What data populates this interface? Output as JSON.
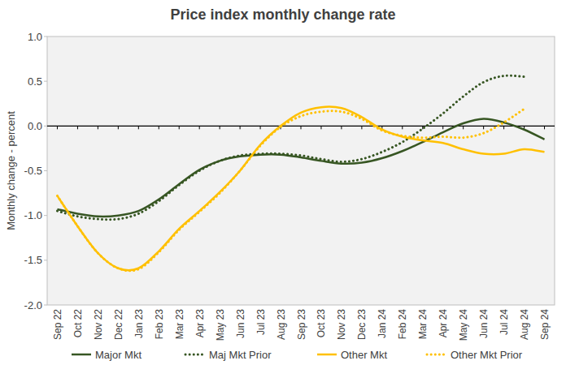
{
  "chart_data": {
    "type": "line",
    "title": "Price index monthly change rate",
    "y_label": "Monthly change - percent",
    "categories": [
      "Sep 22",
      "Oct 22",
      "Nov 22",
      "Dec 22",
      "Jan 23",
      "Feb 23",
      "Mar 23",
      "Apr 23",
      "May 23",
      "Jun 23",
      "Jul 23",
      "Aug 23",
      "Sep 23",
      "Oct 23",
      "Nov 23",
      "Dec 23",
      "Jan 24",
      "Feb 24",
      "Mar 24",
      "Apr 24",
      "May 24",
      "Jun 24",
      "Jul 24",
      "Aug 24",
      "Sep 24"
    ],
    "series": [
      {
        "name": "Major Mkt",
        "color": "#375623",
        "line_style": "solid",
        "values": [
          -0.93,
          -0.98,
          -1.01,
          -1.0,
          -0.95,
          -0.82,
          -0.65,
          -0.49,
          -0.39,
          -0.34,
          -0.32,
          -0.32,
          -0.35,
          -0.39,
          -0.42,
          -0.41,
          -0.36,
          -0.28,
          -0.18,
          -0.07,
          0.03,
          0.08,
          0.04,
          -0.04,
          -0.15
        ]
      },
      {
        "name": "Maj Mkt Prior",
        "color": "#375623",
        "line_style": "dotted",
        "values": [
          -0.95,
          -1.01,
          -1.04,
          -1.04,
          -0.98,
          -0.84,
          -0.66,
          -0.5,
          -0.39,
          -0.33,
          -0.31,
          -0.31,
          -0.33,
          -0.37,
          -0.4,
          -0.37,
          -0.29,
          -0.18,
          -0.03,
          0.14,
          0.33,
          0.49,
          0.56,
          0.55,
          null
        ]
      },
      {
        "name": "Other Mkt",
        "color": "#ffc000",
        "line_style": "solid",
        "values": [
          -0.78,
          -1.12,
          -1.42,
          -1.59,
          -1.59,
          -1.4,
          -1.15,
          -0.95,
          -0.74,
          -0.5,
          -0.21,
          0.0,
          0.15,
          0.21,
          0.2,
          0.1,
          -0.04,
          -0.12,
          -0.16,
          -0.19,
          -0.26,
          -0.31,
          -0.31,
          -0.26,
          -0.29
        ]
      },
      {
        "name": "Other Mkt Prior",
        "color": "#ffc000",
        "line_style": "dotted",
        "values": [
          -0.78,
          -1.12,
          -1.42,
          -1.59,
          -1.6,
          -1.41,
          -1.16,
          -0.96,
          -0.75,
          -0.5,
          -0.22,
          -0.01,
          0.11,
          0.16,
          0.16,
          0.08,
          -0.05,
          -0.11,
          -0.13,
          -0.12,
          -0.13,
          -0.08,
          0.04,
          0.19,
          null
        ]
      }
    ],
    "ylim": [
      -2,
      1
    ],
    "yticks": [
      {
        "value": -2,
        "label": "-2.0"
      },
      -1.5,
      {
        "value": -1,
        "label": "-1.0"
      },
      -0.5,
      {
        "value": 0,
        "label": "0.0"
      },
      0.5,
      {
        "value": 1,
        "label": "1.0"
      }
    ],
    "grid": false,
    "legend": "bottom"
  }
}
